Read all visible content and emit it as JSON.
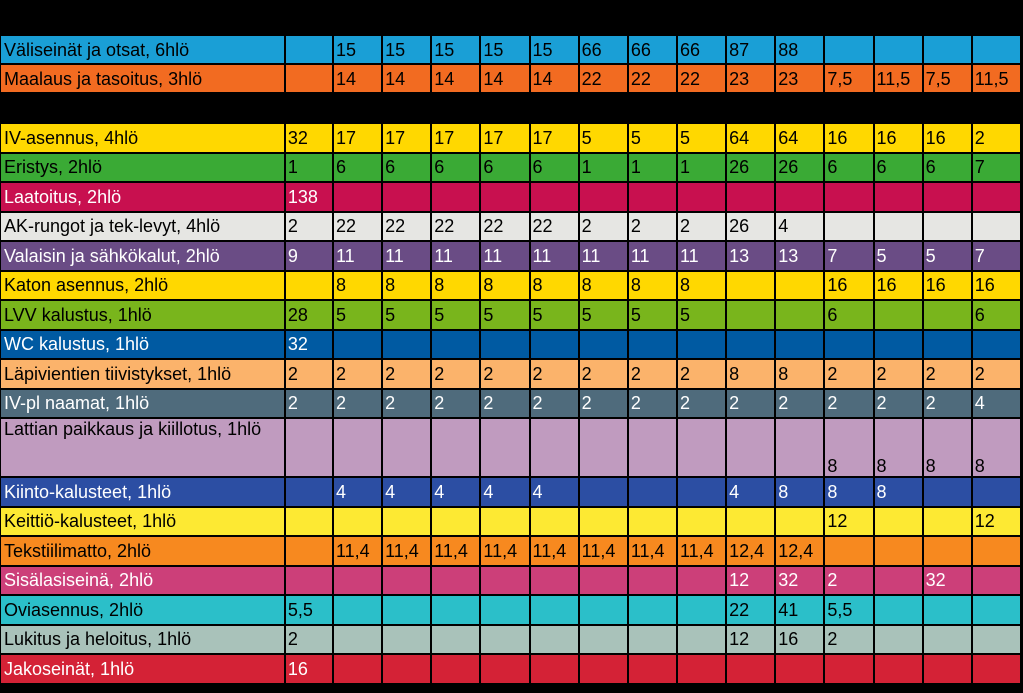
{
  "top_rows": [
    {
      "name": "Väliseinät ja otsat, 6hlö",
      "color": "#1a9fd6",
      "text": "dark",
      "cells": [
        "",
        "15",
        "15",
        "15",
        "15",
        "15",
        "66",
        "66",
        "66",
        "87",
        "88",
        "",
        "",
        "",
        ""
      ]
    },
    {
      "name": "Maalaus ja tasoitus, 3hlö",
      "color": "#f26b21",
      "text": "dark",
      "cells": [
        "",
        "14",
        "14",
        "14",
        "14",
        "14",
        "22",
        "22",
        "22",
        "23",
        "23",
        "7,5",
        "11,5",
        "7,5",
        "11,5"
      ]
    }
  ],
  "rows": [
    {
      "name": "IV-asennus, 4hlö",
      "color": "#ffd800",
      "text": "dark",
      "cells": [
        "32",
        "17",
        "17",
        "17",
        "17",
        "17",
        "5",
        "5",
        "5",
        "64",
        "64",
        "16",
        "16",
        "16",
        "2"
      ]
    },
    {
      "name": "Eristys, 2hlö",
      "color": "#3aaa35",
      "text": "dark",
      "cells": [
        "1",
        "6",
        "6",
        "6",
        "6",
        "6",
        "1",
        "1",
        "1",
        "26",
        "26",
        "6",
        "6",
        "6",
        "7"
      ]
    },
    {
      "name": "Laatoitus, 2hlö",
      "color": "#c8104f",
      "text": "light",
      "cells": [
        "138",
        "",
        "",
        "",
        "",
        "",
        "",
        "",
        "",
        "",
        "",
        "",
        "",
        "",
        ""
      ]
    },
    {
      "name": "AK-rungot ja tek-levyt, 4hlö",
      "color": "#e6e6e3",
      "text": "dark",
      "cells": [
        "2",
        "22",
        "22",
        "22",
        "22",
        "22",
        "2",
        "2",
        "2",
        "26",
        "4",
        "",
        "",
        "",
        ""
      ]
    },
    {
      "name": "Valaisin ja sähkökalut, 2hlö",
      "color": "#6a4c85",
      "text": "light",
      "cells": [
        "9",
        "11",
        "11",
        "11",
        "11",
        "11",
        "11",
        "11",
        "11",
        "13",
        "13",
        "7",
        "5",
        "5",
        "7"
      ]
    },
    {
      "name": "Katon asennus, 2hlö",
      "color": "#ffd800",
      "text": "dark",
      "cells": [
        "",
        "8",
        "8",
        "8",
        "8",
        "8",
        "8",
        "8",
        "8",
        "",
        "",
        "16",
        "16",
        "16",
        "16"
      ]
    },
    {
      "name": "LVV kalustus, 1hlö",
      "color": "#79b51c",
      "text": "dark",
      "cells": [
        "28",
        "5",
        "5",
        "5",
        "5",
        "5",
        "5",
        "5",
        "5",
        "",
        "",
        "6",
        "",
        "",
        "6"
      ]
    },
    {
      "name": "WC kalustus, 1hlö",
      "color": "#005aa2",
      "text": "light",
      "cells": [
        "32",
        "",
        "",
        "",
        "",
        "",
        "",
        "",
        "",
        "",
        "",
        "",
        "",
        "",
        ""
      ]
    },
    {
      "name": "Läpivientien tiivistykset, 1hlö",
      "color": "#fbb36b",
      "text": "dark",
      "cells": [
        "2",
        "2",
        "2",
        "2",
        "2",
        "2",
        "2",
        "2",
        "2",
        "8",
        "8",
        "2",
        "2",
        "2",
        "2"
      ]
    },
    {
      "name": "IV-pl naamat, 1hlö",
      "color": "#4f6b7c",
      "text": "light",
      "cells": [
        "2",
        "2",
        "2",
        "2",
        "2",
        "2",
        "2",
        "2",
        "2",
        "2",
        "2",
        "2",
        "2",
        "2",
        "4"
      ]
    },
    {
      "name": "Lattian paikkaus ja kiillotus, 1hlö",
      "color": "#c09bbf",
      "text": "dark",
      "tall": true,
      "cells": [
        "",
        "",
        "",
        "",
        "",
        "",
        "",
        "",
        "",
        "",
        "",
        "8",
        "8",
        "8",
        "8"
      ]
    },
    {
      "name": "Kiinto-kalusteet, 1hlö",
      "color": "#2c4ea3",
      "text": "light",
      "cells": [
        "",
        "4",
        "4",
        "4",
        "4",
        "4",
        "",
        "",
        "",
        "4",
        "8",
        "8",
        "8",
        "",
        ""
      ]
    },
    {
      "name": "Keittiö-kalusteet, 1hlö",
      "color": "#fde933",
      "text": "dark",
      "cells": [
        "",
        "",
        "",
        "",
        "",
        "",
        "",
        "",
        "",
        "",
        "",
        "12",
        "",
        "",
        "12"
      ]
    },
    {
      "name": "Tekstiilimatto, 2hlö",
      "color": "#f7891f",
      "text": "dark",
      "cells": [
        "",
        "11,4",
        "11,4",
        "11,4",
        "11,4",
        "11,4",
        "11,4",
        "11,4",
        "11,4",
        "12,4",
        "12,4",
        "",
        "",
        "",
        ""
      ]
    },
    {
      "name": "Sisälasiseinä, 2hlö",
      "color": "#cc3f79",
      "text": "light",
      "cells": [
        "",
        "",
        "",
        "",
        "",
        "",
        "",
        "",
        "",
        "12",
        "32",
        "2",
        "",
        "32",
        ""
      ]
    },
    {
      "name": "Oviasennus, 2hlö",
      "color": "#2bbfc9",
      "text": "dark",
      "cells": [
        "5,5",
        "",
        "",
        "",
        "",
        "",
        "",
        "",
        "",
        "22",
        "41",
        "5,5",
        "",
        "",
        ""
      ]
    },
    {
      "name": "Lukitus ja heloitus, 1hlö",
      "color": "#a9c2ba",
      "text": "dark",
      "cells": [
        "2",
        "",
        "",
        "",
        "",
        "",
        "",
        "",
        "",
        "12",
        "16",
        "2",
        "",
        "",
        ""
      ]
    },
    {
      "name": "Jakoseinät, 1hlö",
      "color": "#d42236",
      "text": "light",
      "cells": [
        "16",
        "",
        "",
        "",
        "",
        "",
        "",
        "",
        "",
        "",
        "",
        "",
        "",
        "",
        ""
      ]
    }
  ]
}
